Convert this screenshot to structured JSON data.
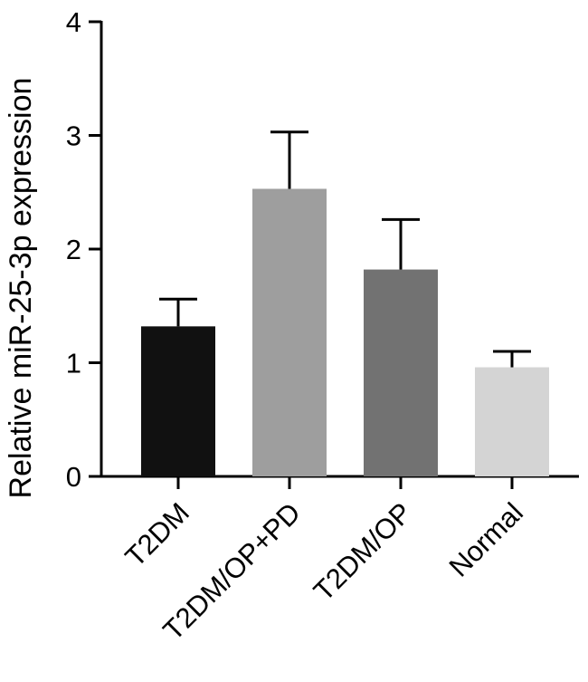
{
  "chart_data": {
    "type": "bar",
    "title": "",
    "xlabel": "",
    "ylabel": "Relative miR-25-3p expression",
    "ylim": [
      0,
      4
    ],
    "yticks": [
      "0",
      "1",
      "2",
      "3",
      "4"
    ],
    "categories": [
      "T2DM",
      "T2DM/OP+PD",
      "T2DM/OP",
      "Normal"
    ],
    "values": [
      1.32,
      2.53,
      1.82,
      0.96
    ],
    "errors": [
      0.24,
      0.5,
      0.44,
      0.14
    ],
    "colors": [
      "#111111",
      "#9e9e9e",
      "#727272",
      "#d4d4d4"
    ],
    "grid": false,
    "legend": "none"
  }
}
